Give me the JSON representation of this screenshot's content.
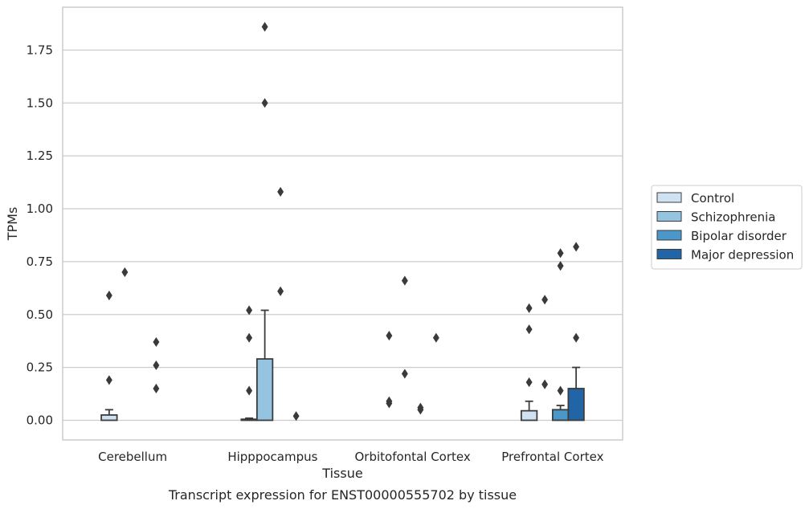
{
  "chart_data": {
    "type": "bar",
    "title": "",
    "caption": "Transcript expression for ENST00000555702 by tissue",
    "xlabel": "Tissue",
    "ylabel": "TPMs",
    "ylim": [
      -0.09,
      1.97
    ],
    "yticks": [
      "0.00",
      "0.25",
      "0.50",
      "0.75",
      "1.00",
      "1.25",
      "1.50",
      "1.75"
    ],
    "grid": true,
    "legend_position": "right",
    "categories": [
      "Cerebellum",
      "Hipppocampus",
      "Orbitofontal Cortex",
      "Prefrontal Cortex"
    ],
    "series": [
      {
        "name": "Control",
        "color": "#d0e1f2",
        "values": [
          0.025,
          0.005,
          0.0,
          0.045
        ],
        "whisker_high": [
          0.05,
          0.01,
          0.0,
          0.09
        ],
        "outliers": [
          [
            0.19,
            0.59
          ],
          [
            0.14,
            0.39,
            0.52
          ],
          [
            0.08,
            0.09,
            0.4
          ],
          [
            0.18,
            0.43,
            0.53
          ]
        ]
      },
      {
        "name": "Schizophrenia",
        "color": "#94c4df",
        "values": [
          0.0,
          0.29,
          0.0,
          0.0
        ],
        "whisker_high": [
          0.0,
          0.52,
          0.0,
          0.0
        ],
        "outliers": [
          [
            0.7
          ],
          [
            1.5,
            1.86
          ],
          [
            0.22,
            0.66
          ],
          [
            0.17,
            0.57
          ]
        ]
      },
      {
        "name": "Bipolar disorder",
        "color": "#4a98c9",
        "values": [
          0.0,
          0.0,
          0.0,
          0.05
        ],
        "whisker_high": [
          0.0,
          0.0,
          0.0,
          0.07
        ],
        "outliers": [
          [],
          [
            0.61,
            1.08
          ],
          [
            0.05,
            0.06
          ],
          [
            0.14,
            0.73,
            0.79
          ]
        ]
      },
      {
        "name": "Major depression",
        "color": "#2165a6",
        "values": [
          0.0,
          0.0,
          0.0,
          0.15
        ],
        "whisker_high": [
          0.0,
          0.0,
          0.0,
          0.25
        ],
        "outliers": [
          [
            0.15,
            0.26,
            0.37
          ],
          [
            0.02
          ],
          [
            0.39
          ],
          [
            0.39,
            0.82
          ]
        ]
      }
    ]
  }
}
